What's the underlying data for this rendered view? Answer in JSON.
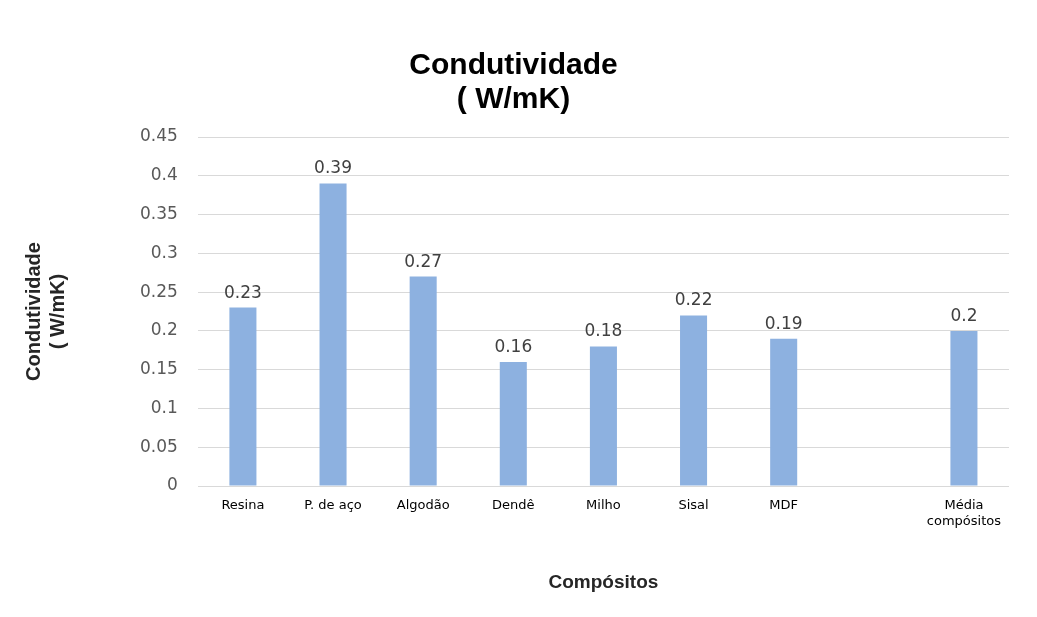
{
  "chart_data": {
    "type": "bar",
    "title": "Condutividade\n( W/mK)",
    "xlabel": "Compósitos",
    "ylabel": "Condutividade\n( W/mK)",
    "categories": [
      "Resina",
      "P. de aço",
      "Algodão",
      "Dendê",
      "Milho",
      "Sisal",
      "MDF",
      null,
      "Média compósitos"
    ],
    "values": [
      0.23,
      0.39,
      0.27,
      0.16,
      0.18,
      0.22,
      0.19,
      null,
      0.2
    ],
    "color": "#8db1e0",
    "ylim": [
      0,
      0.45
    ],
    "yticks": [
      0,
      0.05,
      0.1,
      0.15,
      0.2,
      0.25,
      0.3,
      0.35,
      0.4,
      0.45
    ],
    "grid": "y",
    "data_labels": true,
    "legend": false
  }
}
